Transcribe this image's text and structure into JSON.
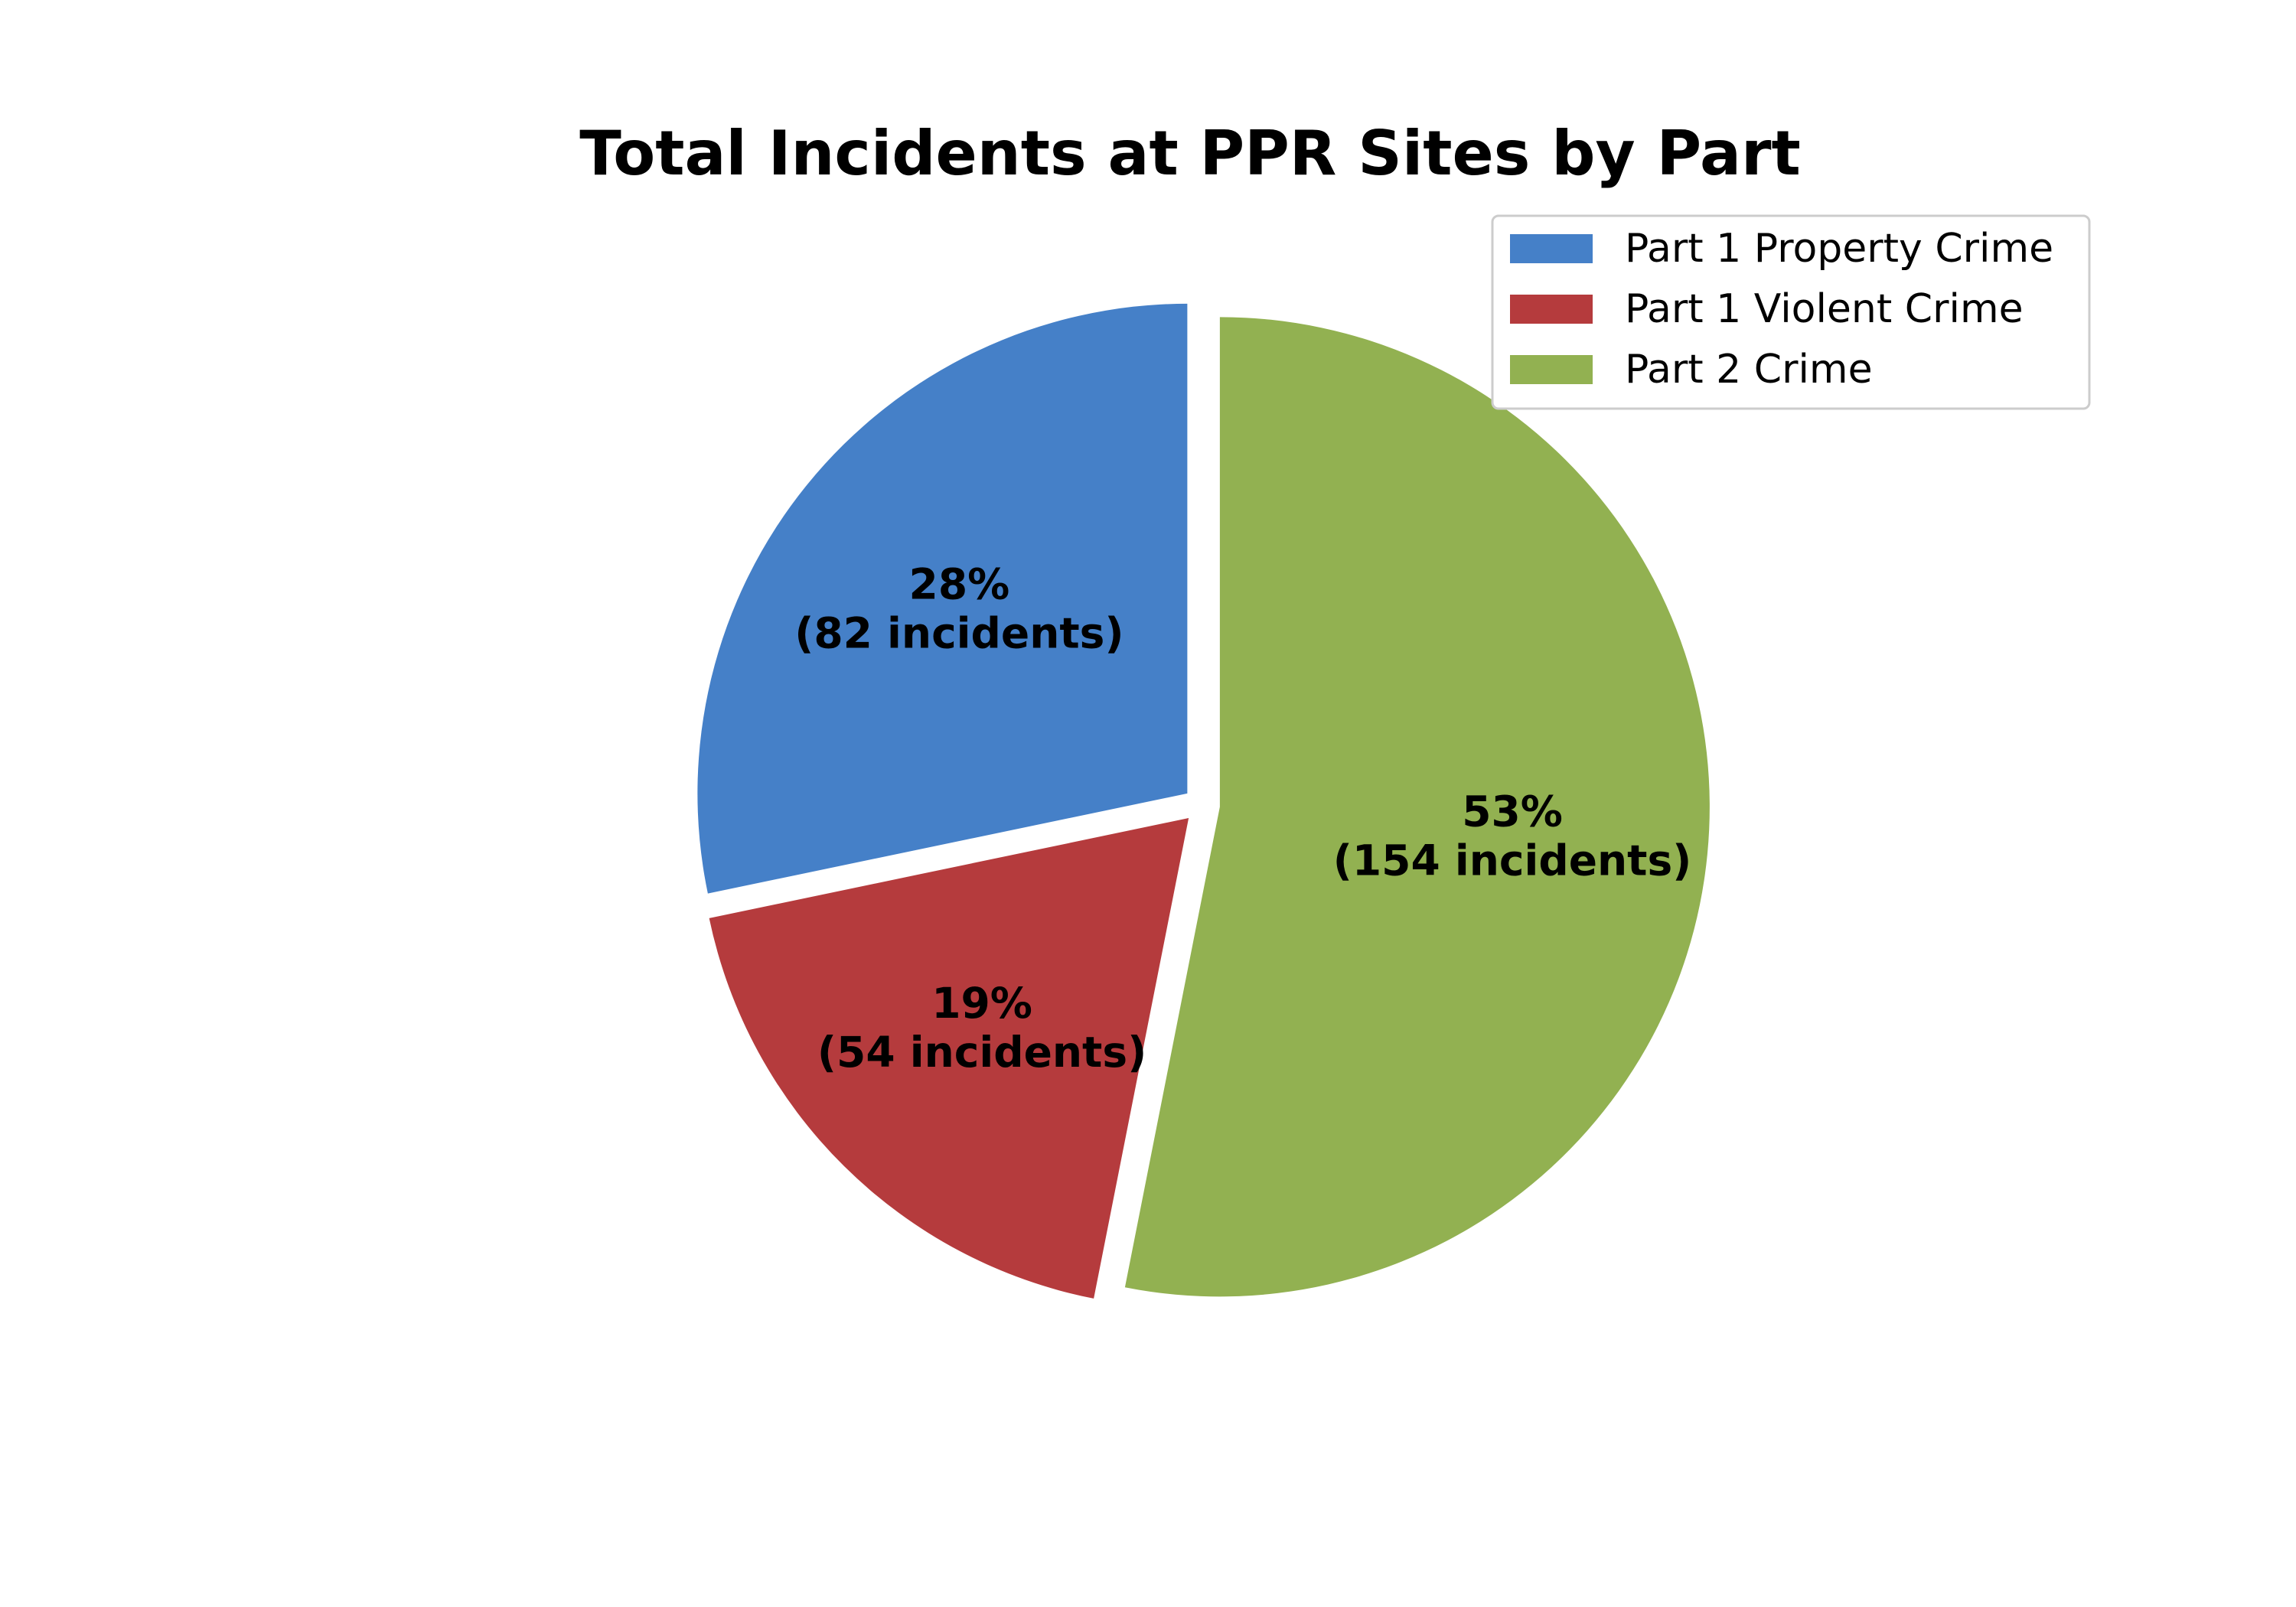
{
  "chart_data": {
    "type": "pie",
    "title": "Total Incidents at PPR Sites by Part",
    "start_angle_deg": 90,
    "direction": "counterclockwise",
    "exploded": true,
    "legend_placement": "top-right",
    "slices": [
      {
        "name": "Part 1 Property Crime",
        "value": 82,
        "percent_label": "28%",
        "count_label": "(82 incidents)",
        "color": "#4580C8"
      },
      {
        "name": "Part 1 Violent Crime",
        "value": 54,
        "percent_label": "19%",
        "count_label": "(54 incidents)",
        "color": "#B53B3D"
      },
      {
        "name": "Part 2 Crime",
        "value": 154,
        "percent_label": "53%",
        "count_label": "(154 incidents)",
        "color": "#92B151"
      }
    ]
  }
}
